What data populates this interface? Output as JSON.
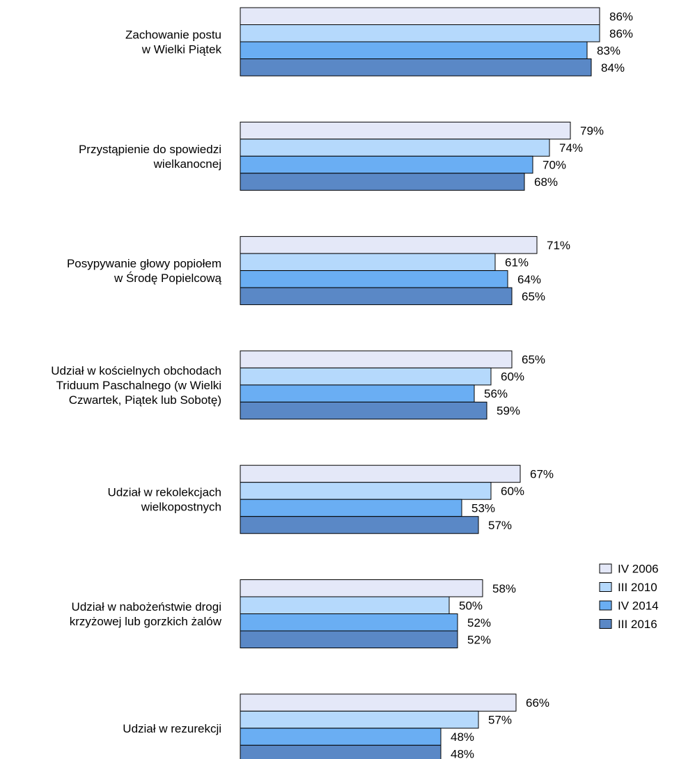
{
  "chart_data": {
    "type": "bar",
    "orientation": "horizontal",
    "categories": [
      [
        "Zachowanie postu",
        "w Wielki Piątek"
      ],
      [
        "Przystąpienie do spowiedzi",
        "wielkanocnej"
      ],
      [
        "Posypywanie głowy popiołem",
        "w Środę Popielcową"
      ],
      [
        "Udział w kościelnych obchodach",
        "Triduum Paschalnego (w Wielki",
        "Czwartek, Piątek lub Sobotę)"
      ],
      [
        "Udział w rekolekcjach",
        "wielkopostnych"
      ],
      [
        "Udział w nabożeństwie drogi",
        "krzyżowej lub gorzkich żalów"
      ],
      [
        "Udział w rezurekcji"
      ]
    ],
    "series": [
      {
        "name": "IV 2006",
        "color": "#e4e8f8",
        "values": [
          86,
          79,
          71,
          65,
          67,
          58,
          66
        ]
      },
      {
        "name": "III 2010",
        "color": "#b5d9fc",
        "values": [
          86,
          74,
          61,
          60,
          60,
          50,
          57
        ]
      },
      {
        "name": "IV 2014",
        "color": "#6aaef3",
        "values": [
          83,
          70,
          64,
          56,
          53,
          52,
          48
        ]
      },
      {
        "name": "III 2016",
        "color": "#5a88c6",
        "values": [
          84,
          68,
          65,
          59,
          57,
          52,
          48
        ]
      }
    ],
    "value_suffix": "%",
    "xlim": [
      0,
      100
    ],
    "grid": false,
    "legend_position": "right"
  }
}
